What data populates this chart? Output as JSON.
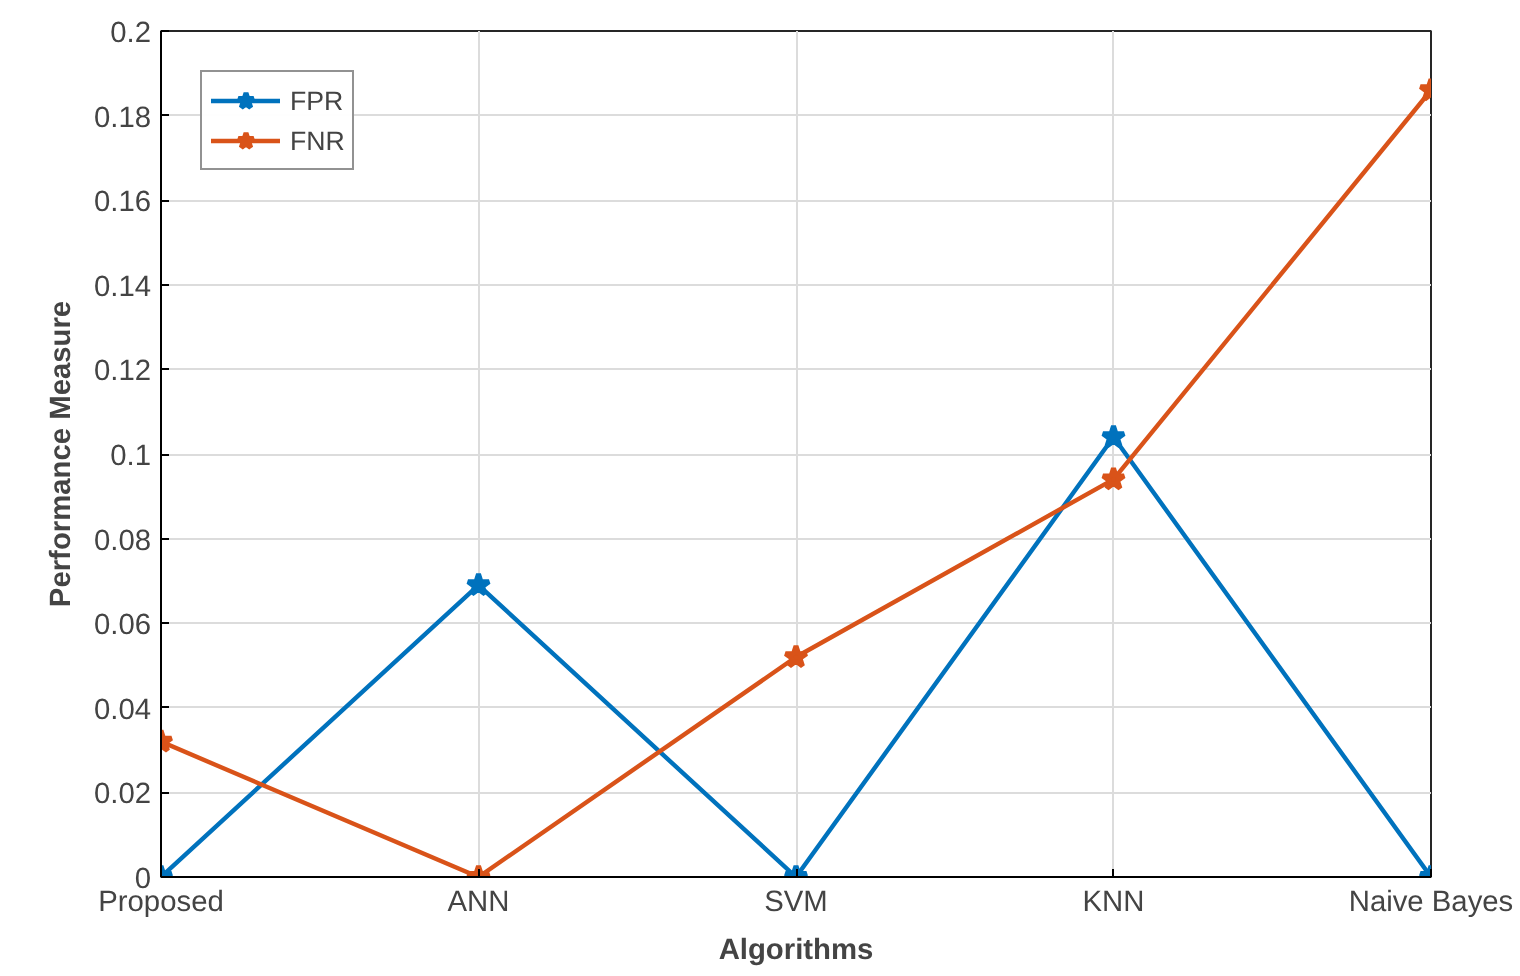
{
  "chart_data": {
    "type": "line",
    "xlabel": "Algorithms",
    "ylabel": "Performance Measure",
    "categories": [
      "Proposed",
      "ANN",
      "SVM",
      "KNN",
      "Naive Bayes"
    ],
    "series": [
      {
        "name": "FPR",
        "color": "#0072bd",
        "values": [
          0,
          0.069,
          0,
          0.104,
          0
        ]
      },
      {
        "name": "FNR",
        "color": "#d95319",
        "values": [
          0.032,
          0,
          0.052,
          0.094,
          0.186
        ]
      }
    ],
    "ylim": [
      0,
      0.2
    ],
    "yticks": [
      0,
      0.02,
      0.04,
      0.06,
      0.08,
      0.1,
      0.12,
      0.14,
      0.16,
      0.18,
      0.2
    ],
    "grid": true,
    "legend": "top left",
    "marker": "star",
    "line_style": "solid"
  }
}
